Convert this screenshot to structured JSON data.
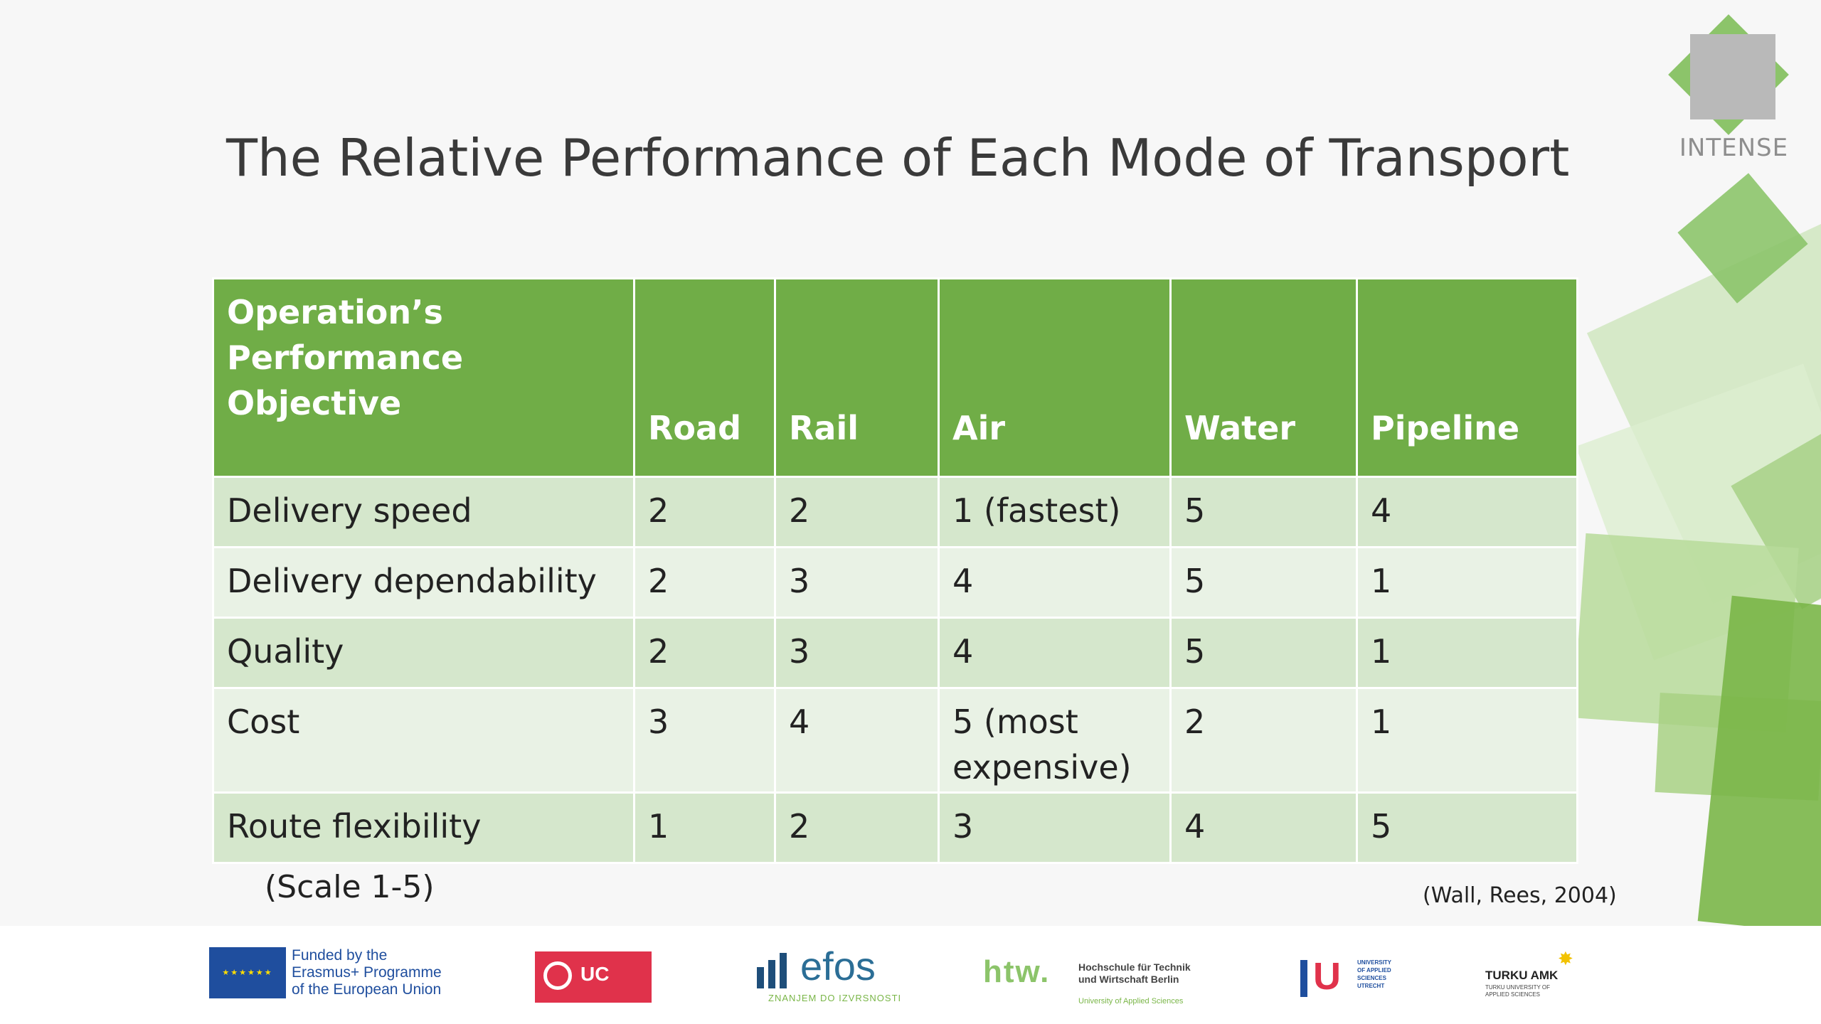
{
  "slide": {
    "title": "The Relative Performance of Each Mode of Transport",
    "brand_logo_text": "INTENSE",
    "scale_note": "(Scale 1-5)",
    "citation": "(Wall, Rees, 2004)"
  },
  "table": {
    "headers": [
      "Operation’s Performance Objective",
      "Road",
      "Rail",
      "Air",
      "Water",
      "Pipeline"
    ],
    "rows": [
      {
        "objective": "Delivery speed",
        "road": "2",
        "rail": "2",
        "air": "1 (fastest)",
        "water": "5",
        "pipeline": "4"
      },
      {
        "objective": "Delivery dependability",
        "road": "2",
        "rail": "3",
        "air": "4",
        "water": "5",
        "pipeline": "1"
      },
      {
        "objective": "Quality",
        "road": "2",
        "rail": "3",
        "air": "4",
        "water": "5",
        "pipeline": "1"
      },
      {
        "objective": "Cost",
        "road": "3",
        "rail": "4",
        "air": "5 (most expensive)",
        "water": "2",
        "pipeline": "1"
      },
      {
        "objective": "Route flexibility",
        "road": "1",
        "rail": "2",
        "air": "3",
        "water": "4",
        "pipeline": "5"
      }
    ]
  },
  "footer": {
    "eu": {
      "line1": "Funded by the",
      "line2": "Erasmus+ Programme",
      "line3": "of the European Union"
    },
    "ucll": {
      "text": "UC"
    },
    "efos": {
      "text": "efos",
      "sub": "ZNANJEM DO IZVRSNOSTI"
    },
    "htw": {
      "mark": "htw.",
      "line1": "Hochschule für Technik",
      "line2": "und Wirtschaft Berlin",
      "sub": "University of Applied Sciences"
    },
    "hu": {
      "mark": "U",
      "line1": "UNIVERSITY",
      "line2": "OF APPLIED",
      "line3": "SCIENCES",
      "line4": "UTRECHT"
    },
    "turku": {
      "name": "TURKU AMK",
      "line1": "TURKU UNIVERSITY OF",
      "line2": "APPLIED SCIENCES"
    }
  },
  "colors": {
    "header_green": "#70ad47",
    "row_odd": "#d5e7cc",
    "row_even": "#e9f2e5",
    "title_text": "#3a3a3a"
  }
}
